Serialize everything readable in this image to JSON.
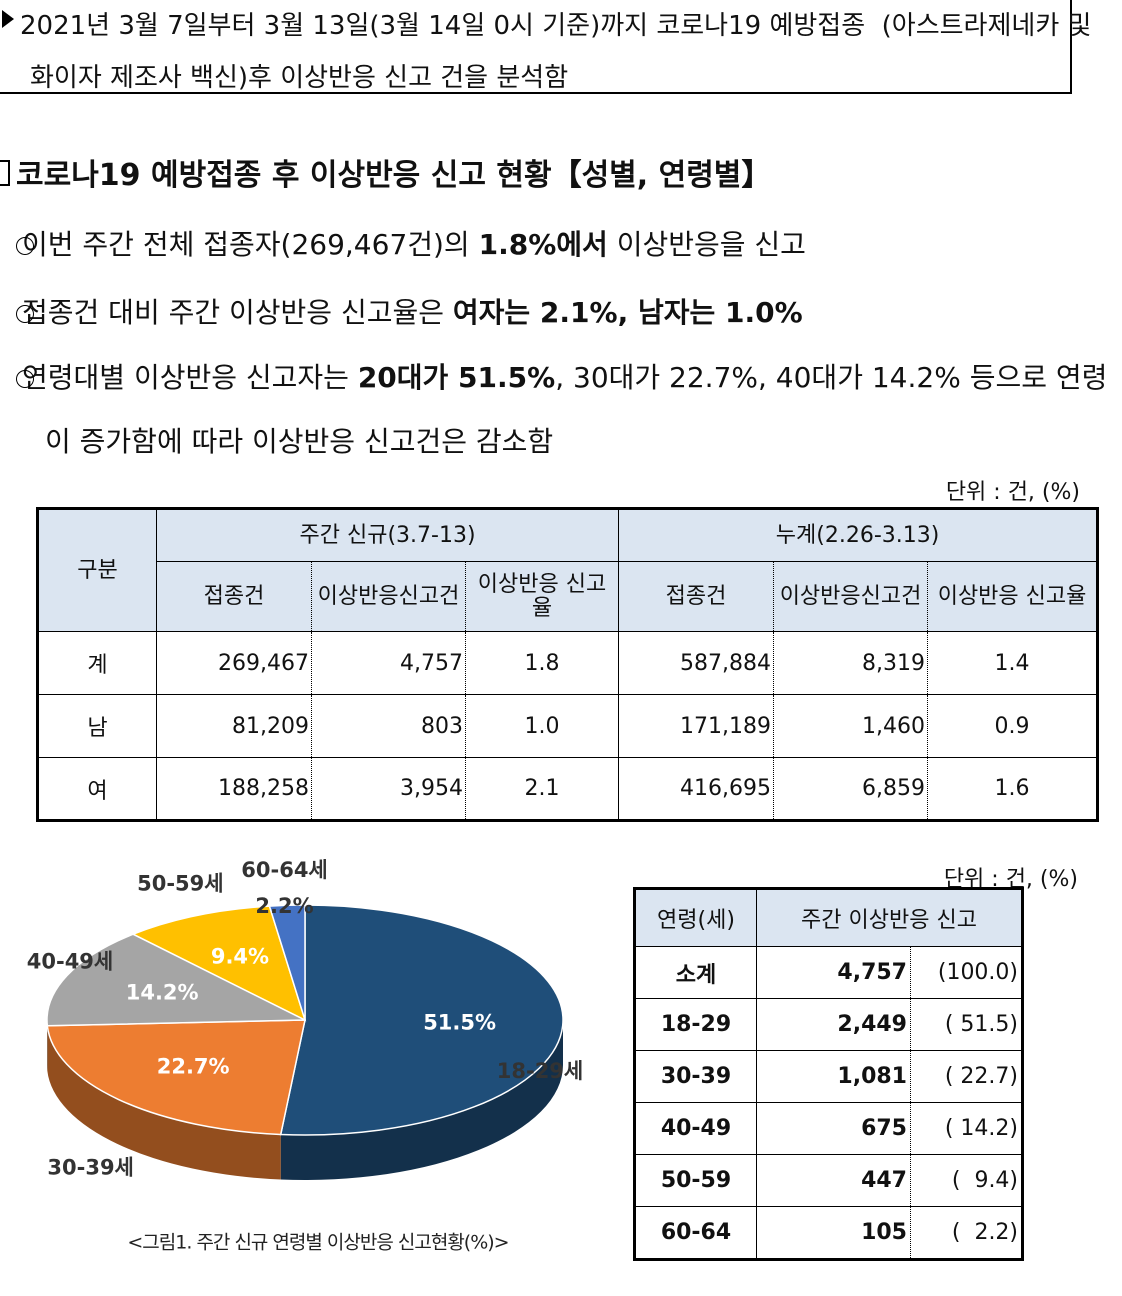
{
  "notice": {
    "text": "2021년 3월 7일부터 3월 13일(3월 14일 0시 기준)까지 코로나19 예방접종  (아스트라제네카 및 화이자 제조사 백신)후 이상반응 신고 건을 분석함"
  },
  "section_title": "코로나19 예방접종 후 이상반응 신고 현황【성별, 연령별】",
  "bullets": [
    [
      {
        "text": "이번 주간 전체 접종자(269,467건)의 "
      },
      {
        "text": "1.8%에서",
        "bold": true
      },
      {
        "text": " 이상반응을 신고"
      }
    ],
    [
      {
        "text": "접종건 대비 주간 이상반응 신고율은 "
      },
      {
        "text": "여자는 2.1%, 남자는 1.0%",
        "bold": true
      }
    ],
    [
      {
        "text": "연령대별 이상반응 신고자는 "
      },
      {
        "text": "20대가 51.5%",
        "bold": true
      },
      {
        "text": ", 30대가 22.7%, 40대가 14.2% 등으로 연령이 증가함에 따라 이상반응 신고건은 감소함"
      }
    ]
  ],
  "table1": {
    "unit": "단위 : 건, (%)",
    "corner": "구분",
    "groups": [
      "주간 신규(3.7-13)",
      "누계(2.26-3.13)"
    ],
    "subheaders": [
      "접종건",
      "이상반응신고건",
      "이상반응 신고율",
      "접종건",
      "이상반응신고건",
      "이상반응 신고율"
    ],
    "rows": [
      [
        "계",
        "269,467",
        "4,757",
        "1.8",
        "587,884",
        "8,319",
        "1.4"
      ],
      [
        "남",
        "81,209",
        "803",
        "1.0",
        "171,189",
        "1,460",
        "0.9"
      ],
      [
        "여",
        "188,258",
        "3,954",
        "2.1",
        "416,695",
        "6,859",
        "1.6"
      ]
    ]
  },
  "chart_data": {
    "type": "pie",
    "caption": "<그림1. 주간 신규 연령별 이상반응 신고현황(%)>",
    "categories": [
      "18-29세",
      "30-39세",
      "40-49세",
      "50-59세",
      "60-64세"
    ],
    "values": [
      51.5,
      22.7,
      14.2,
      9.4,
      2.2
    ],
    "value_labels": [
      "51.5%",
      "22.7%",
      "14.2%",
      "9.4%",
      "2.2%"
    ],
    "colors": [
      "#1f4e79",
      "#ed7d31",
      "#a5a5a5",
      "#ffc000",
      "#4472c4"
    ]
  },
  "table2": {
    "unit": "단위 : 건, (%)",
    "headers": [
      "연령(세)",
      "주간 이상반응 신고"
    ],
    "rows": [
      [
        "소계",
        "4,757",
        "(100.0)"
      ],
      [
        "18-29",
        "2,449",
        "( 51.5)"
      ],
      [
        "30-39",
        "1,081",
        "( 22.7)"
      ],
      [
        "40-49",
        "675",
        "( 14.2)"
      ],
      [
        "50-59",
        "447",
        "(  9.4)"
      ],
      [
        "60-64",
        "105",
        "(  2.2)"
      ]
    ]
  }
}
